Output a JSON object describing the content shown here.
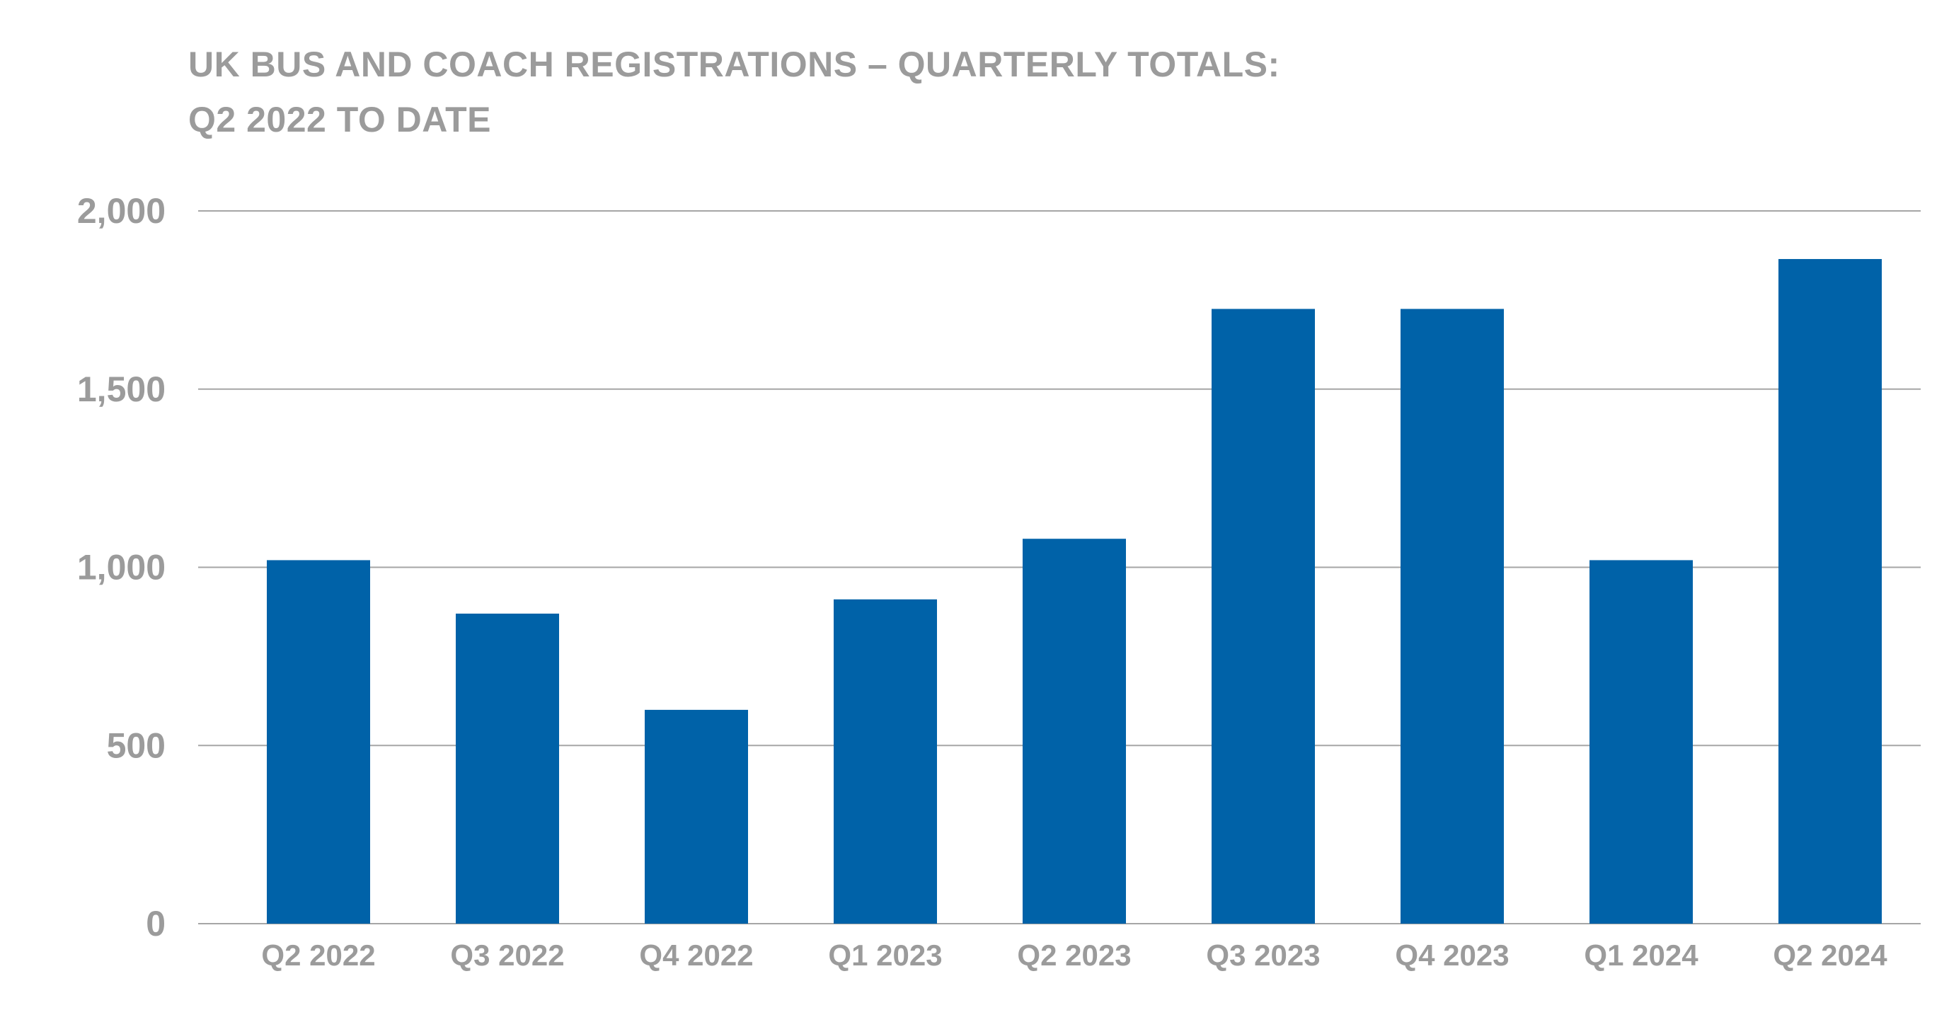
{
  "chart_data": {
    "type": "bar",
    "title_line1": "UK BUS AND COACH REGISTRATIONS – QUARTERLY TOTALS:",
    "title_line2": "Q2 2022 TO DATE",
    "xlabel": "",
    "ylabel": "",
    "categories": [
      "Q2 2022",
      "Q3 2022",
      "Q4 2022",
      "Q1 2023",
      "Q2 2023",
      "Q3 2023",
      "Q4 2023",
      "Q1 2024",
      "Q2 2024"
    ],
    "values": [
      1020,
      870,
      600,
      910,
      1080,
      1725,
      1725,
      1020,
      1865
    ],
    "ylim": [
      0,
      2000
    ],
    "yticks": [
      0,
      500,
      1000,
      1500,
      2000
    ],
    "ytick_labels": [
      "0",
      "500",
      "1,000",
      "1,500",
      "2,000"
    ],
    "grid": true,
    "legend": "none",
    "colors": {
      "bar": "#0062a8",
      "grid": "#a6a6a6",
      "text": "#9b9b9b"
    }
  }
}
